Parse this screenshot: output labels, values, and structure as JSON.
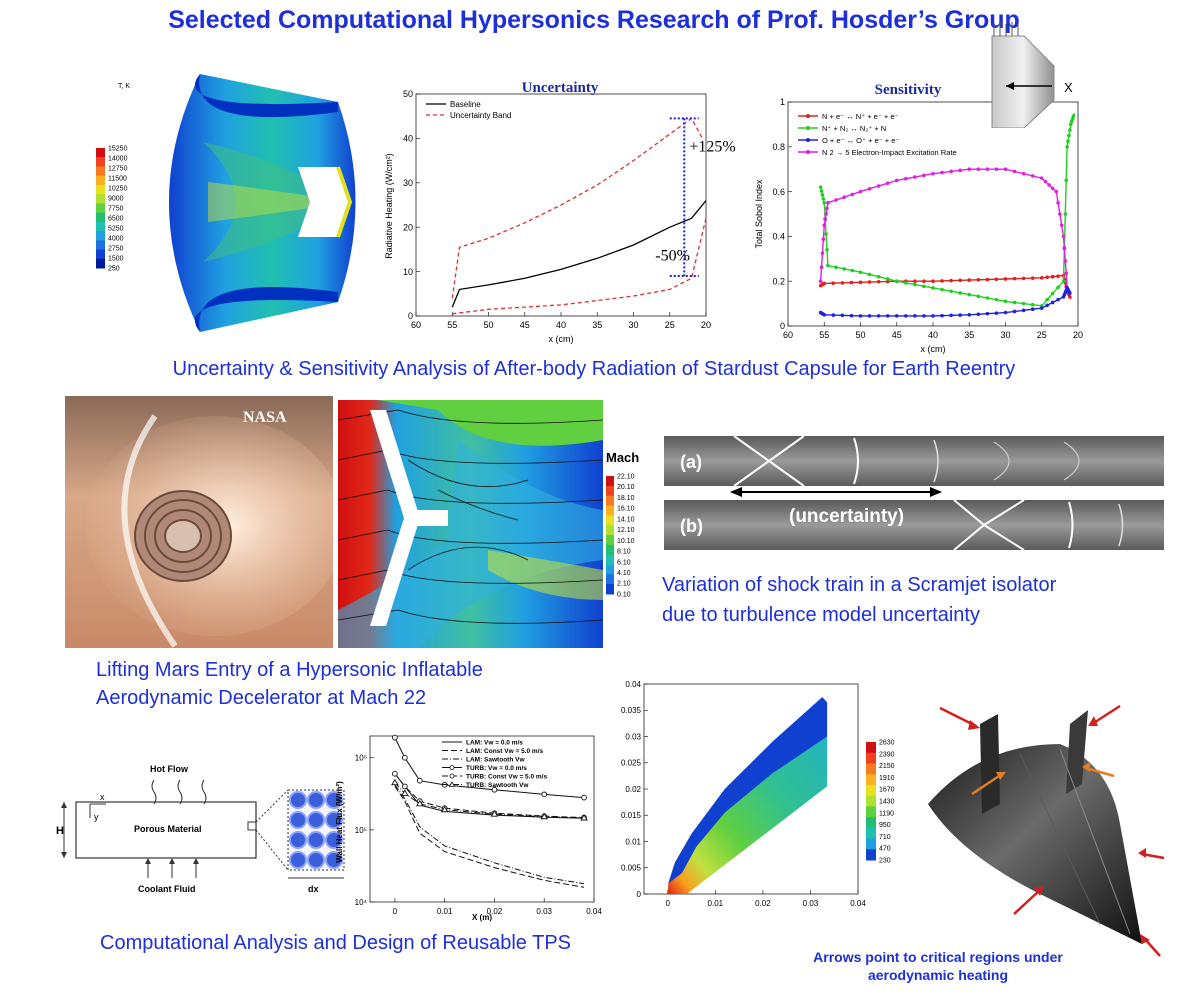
{
  "page": {
    "title": "Selected Computational Hypersonics Research of Prof. Hosder’s Group",
    "caption_stardust": "Uncertainty & Sensitivity Analysis of After-body Radiation of Stardust Capsule for Earth Reentry",
    "caption_hiad_line1": "Lifting Mars Entry of a Hypersonic Inflatable",
    "caption_hiad_line2": "Aerodynamic Decelerator  at Mach 22",
    "caption_scramjet_line1": "Variation of shock train in a Scramjet isolator",
    "caption_scramjet_line2": "due to turbulence model uncertainty",
    "caption_tps": "Computational Analysis and Design of Reusable TPS",
    "caption_arrows_line1": "Arrows point to critical regions under",
    "caption_arrows_line2": "aerodynamic heating"
  },
  "capsule_temp": {
    "colorbar_title": "T, K",
    "ticks": [
      "15250",
      "14000",
      "12750",
      "11500",
      "10250",
      "9000",
      "7750",
      "6500",
      "5250",
      "4000",
      "2750",
      "1500",
      "250"
    ],
    "colors": [
      "#d01010",
      "#f04020",
      "#f87a20",
      "#f8b020",
      "#e8e020",
      "#b0e030",
      "#60d040",
      "#20c070",
      "#20c0b0",
      "#20a0e0",
      "#2070e0",
      "#1040d0",
      "#0018a0"
    ]
  },
  "hiad": {
    "nasa_label": "NASA",
    "mach_title": "Mach",
    "mach_ticks": [
      "22.10",
      "20.10",
      "18.10",
      "16.10",
      "14.10",
      "12.10",
      "10.10",
      "8.10",
      "6.10",
      "4.10",
      "2.10",
      "0.10"
    ],
    "colors": [
      "#d01010",
      "#f04020",
      "#f87a20",
      "#f8b020",
      "#e8e020",
      "#b0e030",
      "#60d040",
      "#20c070",
      "#20c0b0",
      "#20a0e0",
      "#2070e0",
      "#1040d0"
    ]
  },
  "scramjet": {
    "label_a": "(a)",
    "label_b": "(b)",
    "uncertainty_label": "(uncertainty)"
  },
  "porous": {
    "hot_flow": "Hot Flow",
    "porous_material": "Porous Material",
    "coolant_fluid": "Coolant Fluid",
    "x_axis": "x",
    "y_axis": "y",
    "h_label": "H",
    "dx_label": "dx"
  },
  "heatflux_contour": {
    "colorbar_ticks": [
      "2630",
      "2390",
      "2150",
      "1910",
      "1670",
      "1430",
      "1190",
      "950",
      "710",
      "470",
      "230"
    ],
    "colors": [
      "#d01010",
      "#f04020",
      "#f87a20",
      "#f8b020",
      "#e8e020",
      "#b0e030",
      "#60d040",
      "#20c070",
      "#20c0b0",
      "#20a0e0",
      "#1040d0"
    ]
  },
  "chart_data": [
    {
      "id": "uncertainty",
      "type": "line",
      "title": "Uncertainty",
      "xlabel": "x (cm)",
      "ylabel": "Radiative Heating (W/cm²)",
      "xlim": [
        60,
        20
      ],
      "ylim": [
        0,
        50
      ],
      "xticks": [
        60,
        55,
        50,
        45,
        40,
        35,
        30,
        25,
        20
      ],
      "yticks": [
        0,
        10,
        20,
        30,
        40,
        50
      ],
      "legend_position": "top-left",
      "series": [
        {
          "name": "Baseline",
          "color": "#000000",
          "dash": "",
          "x": [
            55,
            54,
            50,
            45,
            40,
            35,
            30,
            25,
            22,
            20
          ],
          "y": [
            2,
            6,
            7,
            8.5,
            10.5,
            13,
            16,
            20,
            22,
            26
          ]
        },
        {
          "name": "Uncertainty Band",
          "color": "#e03030",
          "dash": "4,3",
          "x": [
            55,
            54,
            50,
            45,
            40,
            35,
            30,
            25,
            22,
            20.5
          ],
          "y": [
            4,
            15.5,
            17.5,
            21,
            25,
            29.5,
            35,
            41,
            44.5,
            40
          ]
        },
        {
          "name": "",
          "color": "#e03030",
          "dash": "4,3",
          "x": [
            55,
            50,
            45,
            40,
            35,
            30,
            25,
            22,
            20
          ],
          "y": [
            0.5,
            1.5,
            2,
            2.5,
            3.5,
            4.5,
            6,
            8.5,
            22
          ]
        }
      ],
      "annotations": [
        {
          "text": "+125%",
          "x": 22.3,
          "y": 37
        },
        {
          "text": "-50%",
          "x": 27,
          "y": 12.5
        }
      ],
      "bracket": {
        "x": 23,
        "y_top": 44.5,
        "y_bottom": 9,
        "x_left": 25,
        "x_right": 21
      }
    },
    {
      "id": "sensitivity",
      "type": "line",
      "title": "Sensitivity",
      "xlabel": "x (cm)",
      "ylabel": "Total Sobol Index",
      "xlim": [
        60,
        20
      ],
      "ylim": [
        0,
        1
      ],
      "xticks": [
        60,
        55,
        50,
        45,
        40,
        35,
        30,
        25,
        20
      ],
      "yticks": [
        0,
        0.2,
        0.4,
        0.6,
        0.8,
        1
      ],
      "legend_position": "top-left",
      "series": [
        {
          "name": "N + e⁻ ↔ N⁺ + e⁻ + e⁻",
          "color": "#e02020",
          "x": [
            55.5,
            55,
            50,
            45,
            40,
            35,
            30,
            25,
            22,
            21.5,
            21
          ],
          "y": [
            0.18,
            0.19,
            0.195,
            0.2,
            0.2,
            0.205,
            0.21,
            0.215,
            0.225,
            0.16,
            0.12
          ]
        },
        {
          "name": "N⁺ + N₂ ↔ N₂⁺ + N",
          "color": "#20d020",
          "x": [
            55.5,
            55,
            54.5,
            50,
            45,
            40,
            35,
            30,
            25,
            22,
            21.5,
            21,
            20.5
          ],
          "y": [
            0.62,
            0.55,
            0.27,
            0.24,
            0.2,
            0.17,
            0.14,
            0.11,
            0.09,
            0.2,
            0.8,
            0.9,
            0.95
          ]
        },
        {
          "name": "O + e⁻ ↔ O⁺ + e⁻ + e⁻",
          "color": "#2020e0",
          "x": [
            55.5,
            55,
            50,
            45,
            40,
            35,
            30,
            25,
            22,
            21.5,
            21
          ],
          "y": [
            0.06,
            0.05,
            0.045,
            0.045,
            0.045,
            0.05,
            0.06,
            0.08,
            0.13,
            0.17,
            0.14
          ]
        },
        {
          "name": "N 2 → 5 Electron-Impact Excitation Rate",
          "color": "#e020e0",
          "x": [
            55.5,
            55,
            54.5,
            50,
            45,
            40,
            35,
            30,
            25,
            23,
            22,
            21.5
          ],
          "y": [
            0.2,
            0.45,
            0.55,
            0.6,
            0.65,
            0.68,
            0.7,
            0.7,
            0.66,
            0.6,
            0.4,
            0.18
          ]
        }
      ],
      "inset_label": "X"
    },
    {
      "id": "wall-heat-flux",
      "type": "line",
      "xlabel": "X (m)",
      "ylabel": "Wall Heat Flux (W/m²)",
      "xlim": [
        -0.005,
        0.04
      ],
      "ylog": true,
      "ylim": [
        10000,
        2000000
      ],
      "xticks": [
        0,
        0.01,
        0.02,
        0.03,
        0.04
      ],
      "ytick_labels": [
        "10⁴",
        "10⁵",
        "10⁶"
      ],
      "legend_position": "top-right",
      "series": [
        {
          "name": "LAM: Vw = 0.0 m/s",
          "style": "solid",
          "marker": "",
          "x": [
            0,
            0.002,
            0.005,
            0.01,
            0.02,
            0.03,
            0.038
          ],
          "y": [
            600000,
            400000,
            220000,
            180000,
            160000,
            150000,
            145000
          ]
        },
        {
          "name": "LAM: Const Vw = 5.0 m/s",
          "style": "dashed",
          "marker": "",
          "x": [
            0,
            0.002,
            0.005,
            0.01,
            0.02,
            0.03,
            0.038
          ],
          "y": [
            400000,
            250000,
            90000,
            50000,
            30000,
            20000,
            16000
          ]
        },
        {
          "name": "LAM: Sawtooth Vw",
          "style": "dashdot",
          "marker": "",
          "x": [
            0,
            0.002,
            0.005,
            0.01,
            0.02,
            0.03,
            0.038
          ],
          "y": [
            420000,
            270000,
            110000,
            60000,
            35000,
            22000,
            18000
          ]
        },
        {
          "name": "TURB: Vw = 0.0 m/s",
          "style": "solid",
          "marker": "circle",
          "x": [
            0,
            0.002,
            0.005,
            0.01,
            0.02,
            0.03,
            0.038
          ],
          "y": [
            1900000,
            1000000,
            480000,
            420000,
            360000,
            310000,
            280000
          ]
        },
        {
          "name": "TURB: Const Vw = 5.0 m/s",
          "style": "dashed",
          "marker": "circle",
          "x": [
            0,
            0.002,
            0.005,
            0.01,
            0.02,
            0.03,
            0.038
          ],
          "y": [
            600000,
            400000,
            250000,
            200000,
            170000,
            155000,
            148000
          ]
        },
        {
          "name": "TURB: Sawtooth Vw",
          "style": "dashdot",
          "marker": "triangle",
          "x": [
            0,
            0.002,
            0.005,
            0.01,
            0.02,
            0.03,
            0.038
          ],
          "y": [
            450000,
            320000,
            230000,
            190000,
            165000,
            152000,
            146000
          ]
        }
      ]
    },
    {
      "id": "tps-temperature-contour",
      "type": "heatmap",
      "xlim": [
        -0.005,
        0.04
      ],
      "ylim": [
        0,
        0.04
      ],
      "xticks": [
        0,
        0.01,
        0.02,
        0.03,
        0.04
      ],
      "yticks": [
        0,
        0.005,
        0.01,
        0.015,
        0.02,
        0.025,
        0.03,
        0.035,
        0.04
      ]
    }
  ]
}
